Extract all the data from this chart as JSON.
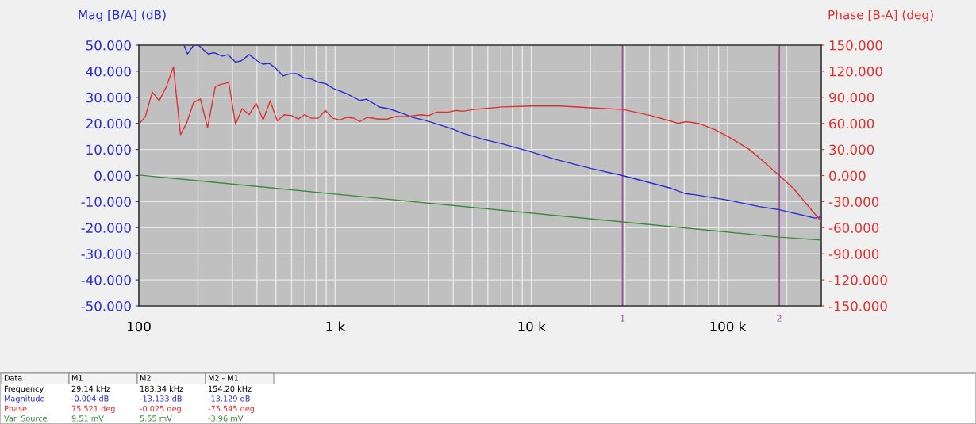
{
  "chart_data": {
    "type": "line",
    "ylabel": "Mag [B/A] (dB)",
    "y2label": "Phase [B-A] (deg)",
    "log": "x",
    "grid": true,
    "legend": false,
    "marker": "none",
    "line_style": "solid",
    "xlim": [
      100,
      300000
    ],
    "xticks": [
      100,
      {
        "value": 1000,
        "label": "1 k"
      },
      {
        "value": 10000,
        "label": "10 k"
      },
      {
        "value": 100000,
        "label": "100 k"
      }
    ],
    "ylim": [
      -50,
      50
    ],
    "yticks": [
      {
        "value": -50,
        "label": "-50.000"
      },
      {
        "value": -40,
        "label": "-40.000"
      },
      {
        "value": -30,
        "label": "-30.000"
      },
      {
        "value": -20,
        "label": "-20.000"
      },
      {
        "value": -10,
        "label": "-10.000"
      },
      {
        "value": 0,
        "label": "0.000"
      },
      {
        "value": 10,
        "label": "10.000"
      },
      {
        "value": 20,
        "label": "20.000"
      },
      {
        "value": 30,
        "label": "30.000"
      },
      {
        "value": 40,
        "label": "40.000"
      },
      {
        "value": 50,
        "label": "50.000"
      }
    ],
    "y2lim": [
      -150,
      150
    ],
    "y2ticks": [
      {
        "value": -150,
        "label": "-150.000"
      },
      {
        "value": -120,
        "label": "-120.000"
      },
      {
        "value": -90,
        "label": "-90.000"
      },
      {
        "value": -60,
        "label": "-60.000"
      },
      {
        "value": -30,
        "label": "-30.000"
      },
      {
        "value": 0,
        "label": "0.000"
      },
      {
        "value": 30,
        "label": "30.000"
      },
      {
        "value": 60,
        "label": "60.000"
      },
      {
        "value": 90,
        "label": "90.000"
      },
      {
        "value": 120,
        "label": "120.000"
      },
      {
        "value": 150,
        "label": "150.000"
      }
    ],
    "series": [
      {
        "color": "#2b2bd6",
        "x": [
          170,
          177,
          190,
          201,
          226,
          242,
          266,
          285,
          311,
          333,
          365,
          400,
          430,
          462,
          495,
          543,
          587,
          634,
          695,
          752,
          826,
          892,
          979,
          1143,
          1335,
          1443,
          1684,
          1879,
          2127,
          2484,
          2902,
          3955,
          4477,
          5741,
          7130,
          9730,
          13280,
          20180,
          29140,
          50400,
          60700,
          68800,
          99800,
          144800,
          183340,
          278000,
          300000
        ],
        "values": [
          50,
          46.6,
          50,
          50,
          46.6,
          47.1,
          45.8,
          46.3,
          43.5,
          44.0,
          46.4,
          44.0,
          42.7,
          43.0,
          41.3,
          38.2,
          39.0,
          39.1,
          37.4,
          37.1,
          35.7,
          35.3,
          33.4,
          31.4,
          28.8,
          29.3,
          26.3,
          25.6,
          24.3,
          22.3,
          21.1,
          17.9,
          16.2,
          13.8,
          12.1,
          9.3,
          6.2,
          2.7,
          0,
          -4.7,
          -6.9,
          -7.4,
          -9.4,
          -11.9,
          -13.1,
          -16.3,
          -15.8
        ]
      },
      {
        "axis": "y2",
        "color": "#e03030",
        "x": [
          100,
          108,
          117,
          127,
          138,
          150,
          163,
          175,
          190,
          206,
          224,
          245,
          262,
          287,
          311,
          336,
          365,
          396,
          430,
          467,
          507,
          551,
          601,
          649,
          698,
          758,
          821,
          892,
          973,
          1059,
          1143,
          1252,
          1335,
          1456,
          1657,
          1846,
          2027,
          2331,
          2730,
          2995,
          3290,
          3780,
          4150,
          4480,
          5080,
          5750,
          7130,
          10000,
          14080,
          20180,
          29140,
          33800,
          40800,
          52400,
          55900,
          61300,
          71000,
          85800,
          104000,
          129000,
          148900,
          183340,
          217000,
          253000,
          300000
        ],
        "values": [
          59,
          68,
          96,
          86,
          102,
          125,
          47,
          60,
          84,
          88,
          55,
          102,
          105,
          107,
          59,
          77,
          70,
          83,
          64,
          86,
          63,
          70,
          69,
          65,
          70,
          66,
          66,
          75,
          66,
          64,
          67,
          66,
          62,
          67,
          65,
          65,
          68,
          68,
          70,
          69,
          73,
          73,
          75,
          74,
          76,
          77,
          79,
          80,
          80,
          78,
          76,
          73,
          69,
          62,
          60,
          62,
          60,
          53,
          43,
          30,
          18,
          0,
          -15,
          -33,
          -53
        ]
      },
      {
        "color": "#3a8a3a",
        "x": [
          100,
          29140,
          183340,
          300000
        ],
        "values": [
          0.2,
          -17.8,
          -23.6,
          -24.7
        ]
      }
    ],
    "ref_lines": [
      {
        "axis": "x",
        "value": 29140,
        "color": "#9b4f9f"
      },
      {
        "axis": "x",
        "value": 183340,
        "color": "#9b4f9f"
      }
    ],
    "annotations": [
      "1",
      "2",
      "Data",
      "M1",
      "M2",
      "M2 - M1",
      "Frequency",
      "29.14 kHz",
      "183.34 kHz",
      "154.20 kHz",
      "Magnitude",
      "-0.004 dB",
      "-13.133 dB",
      "-13.129 dB",
      "Phase",
      "75.521 deg",
      "-0.025 deg",
      "-75.545 deg",
      "Var. Source",
      "9.51 mV",
      "5.55 mV",
      "-3.96 mV"
    ]
  }
}
